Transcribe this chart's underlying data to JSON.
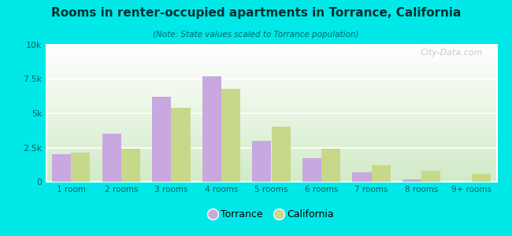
{
  "title": "Rooms in renter-occupied apartments in Torrance, California",
  "subtitle": "(Note: State values scaled to Torrance population)",
  "categories": [
    "1 room",
    "2 rooms",
    "3 rooms",
    "4 rooms",
    "5 rooms",
    "6 rooms",
    "7 rooms",
    "8 rooms",
    "9+ rooms"
  ],
  "torrance": [
    2000,
    3500,
    6200,
    7700,
    3000,
    1700,
    700,
    150,
    0
  ],
  "california": [
    2100,
    2400,
    5400,
    6800,
    4000,
    2400,
    1200,
    800,
    550
  ],
  "torrance_color": "#c9a8e0",
  "california_color": "#c8d88a",
  "ylim": [
    0,
    10000
  ],
  "ytick_labels": [
    "0",
    "2.5k",
    "5k",
    "7.5k",
    "10k"
  ],
  "ytick_vals": [
    0,
    2500,
    5000,
    7500,
    10000
  ],
  "background_color": "#00e8e8",
  "bar_width": 0.38,
  "legend_torrance": "Torrance",
  "legend_california": "California",
  "watermark": "City-Data.com",
  "title_color": "#003333",
  "subtitle_color": "#006666",
  "tick_color": "#006666",
  "grid_color": "#ffffff"
}
